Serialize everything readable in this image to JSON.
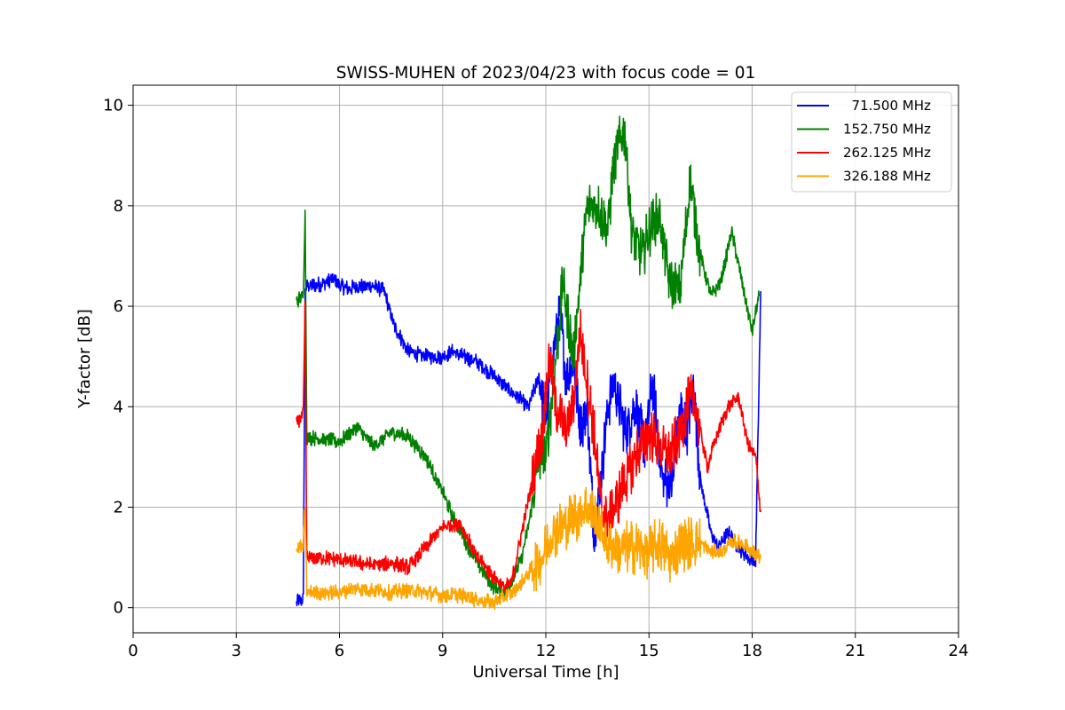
{
  "chart_data": {
    "type": "line",
    "title": "SWISS-MUHEN of 2023/04/23 with focus code = 01",
    "xlabel": "Universal Time [h]",
    "ylabel": "Y-factor [dB]",
    "xlim": [
      0,
      24
    ],
    "ylim": [
      -0.5,
      10.4
    ],
    "xticks": [
      0,
      3,
      6,
      9,
      12,
      15,
      18,
      21,
      24
    ],
    "xtick_labels": [
      "0",
      "3",
      "6",
      "9",
      "12",
      "15",
      "18",
      "21",
      "24"
    ],
    "yticks": [
      0,
      2,
      4,
      6,
      8,
      10
    ],
    "ytick_labels": [
      "0",
      "2",
      "4",
      "6",
      "8",
      "10"
    ],
    "grid": true,
    "legend_position": "top-right",
    "series": [
      {
        "name": "  71.500 MHz",
        "color": "#0000ff",
        "x": [
          4.75,
          4.9,
          4.95,
          5.0,
          5.05,
          5.5,
          5.8,
          6.0,
          6.3,
          6.5,
          7.0,
          7.3,
          7.6,
          8.0,
          8.5,
          9.0,
          9.3,
          9.6,
          10.0,
          10.5,
          11.0,
          11.5,
          11.8,
          12.0,
          12.2,
          12.4,
          12.6,
          12.8,
          13.0,
          13.2,
          13.4,
          13.6,
          13.8,
          14.0,
          14.3,
          14.6,
          14.9,
          15.1,
          15.4,
          15.7,
          15.9,
          16.1,
          16.3,
          16.5,
          16.8,
          17.0,
          17.3,
          17.6,
          17.9,
          18.1,
          18.25
        ],
        "y": [
          0.1,
          0.15,
          0.2,
          6.3,
          6.4,
          6.45,
          6.55,
          6.4,
          6.35,
          6.4,
          6.4,
          6.3,
          5.6,
          5.1,
          5.0,
          5.0,
          5.1,
          5.0,
          4.9,
          4.6,
          4.3,
          4.0,
          4.6,
          3.8,
          5.0,
          6.0,
          4.5,
          5.0,
          3.5,
          4.0,
          1.5,
          2.5,
          4.0,
          4.5,
          3.5,
          4.0,
          3.2,
          4.5,
          2.5,
          2.5,
          4.0,
          3.5,
          4.5,
          2.5,
          1.5,
          1.2,
          1.5,
          1.2,
          1.0,
          0.9,
          6.3
        ]
      },
      {
        "name": "152.750 MHz",
        "color": "#008000",
        "x": [
          4.75,
          4.9,
          4.95,
          5.0,
          5.05,
          5.5,
          6.0,
          6.5,
          7.0,
          7.5,
          8.0,
          8.5,
          9.0,
          9.3,
          9.6,
          10.0,
          10.5,
          10.8,
          11.0,
          11.3,
          11.6,
          11.8,
          12.0,
          12.3,
          12.5,
          12.8,
          13.0,
          13.2,
          13.5,
          13.8,
          14.0,
          14.3,
          14.5,
          14.8,
          15.0,
          15.3,
          15.6,
          15.9,
          16.2,
          16.5,
          16.8,
          17.1,
          17.4,
          17.7,
          18.0,
          18.2
        ],
        "y": [
          6.1,
          6.2,
          6.2,
          8.0,
          3.4,
          3.35,
          3.3,
          3.6,
          3.2,
          3.5,
          3.4,
          3.0,
          2.3,
          1.8,
          1.4,
          0.9,
          0.4,
          0.3,
          0.5,
          1.0,
          2.0,
          3.0,
          3.0,
          5.0,
          6.5,
          5.0,
          6.5,
          8.0,
          8.0,
          7.5,
          9.0,
          9.5,
          7.5,
          7.0,
          7.5,
          7.8,
          6.5,
          6.3,
          8.5,
          7.0,
          6.2,
          6.5,
          7.5,
          6.5,
          5.5,
          6.2
        ]
      },
      {
        "name": "262.125 MHz",
        "color": "#ff0000",
        "x": [
          4.75,
          4.9,
          4.95,
          5.0,
          5.05,
          5.5,
          6.0,
          6.5,
          7.0,
          7.5,
          8.0,
          8.5,
          9.0,
          9.5,
          10.0,
          10.5,
          10.8,
          11.0,
          11.3,
          11.6,
          11.9,
          12.1,
          12.3,
          12.6,
          12.8,
          13.0,
          13.2,
          13.4,
          13.6,
          13.8,
          14.0,
          14.3,
          14.6,
          15.0,
          15.3,
          15.6,
          15.9,
          16.1,
          16.3,
          16.5,
          16.7,
          17.0,
          17.3,
          17.6,
          17.9,
          18.1,
          18.25
        ],
        "y": [
          3.7,
          3.8,
          3.9,
          6.0,
          1.0,
          1.0,
          0.95,
          0.9,
          0.85,
          0.9,
          0.8,
          1.2,
          1.6,
          1.7,
          1.0,
          0.6,
          0.4,
          0.5,
          1.5,
          2.5,
          3.5,
          5.0,
          4.0,
          3.5,
          4.0,
          5.5,
          4.5,
          3.5,
          2.0,
          1.8,
          2.0,
          2.5,
          3.0,
          3.5,
          3.2,
          3.0,
          3.5,
          4.0,
          4.2,
          3.5,
          2.8,
          3.5,
          4.0,
          4.2,
          3.2,
          3.0,
          1.9
        ]
      },
      {
        "name": "326.188 MHz",
        "color": "#ffa500",
        "x": [
          4.75,
          4.9,
          4.95,
          5.0,
          5.05,
          5.5,
          6.0,
          6.5,
          7.0,
          7.5,
          8.0,
          8.5,
          9.0,
          9.5,
          10.0,
          10.5,
          10.8,
          11.0,
          11.3,
          11.6,
          11.9,
          12.2,
          12.5,
          12.8,
          13.0,
          13.2,
          13.5,
          13.8,
          14.0,
          14.3,
          14.6,
          15.0,
          15.3,
          15.6,
          15.9,
          16.2,
          16.5,
          16.8,
          17.1,
          17.4,
          17.7,
          18.0,
          18.25
        ],
        "y": [
          1.15,
          1.2,
          1.2,
          2.0,
          0.3,
          0.3,
          0.3,
          0.4,
          0.35,
          0.3,
          0.35,
          0.3,
          0.25,
          0.25,
          0.15,
          0.1,
          0.2,
          0.3,
          0.5,
          0.8,
          1.0,
          1.5,
          1.6,
          1.8,
          1.9,
          2.0,
          1.7,
          1.3,
          1.2,
          1.2,
          1.2,
          1.1,
          1.3,
          1.0,
          1.2,
          1.3,
          1.3,
          1.1,
          1.1,
          1.3,
          1.3,
          1.1,
          1.0
        ]
      }
    ]
  }
}
